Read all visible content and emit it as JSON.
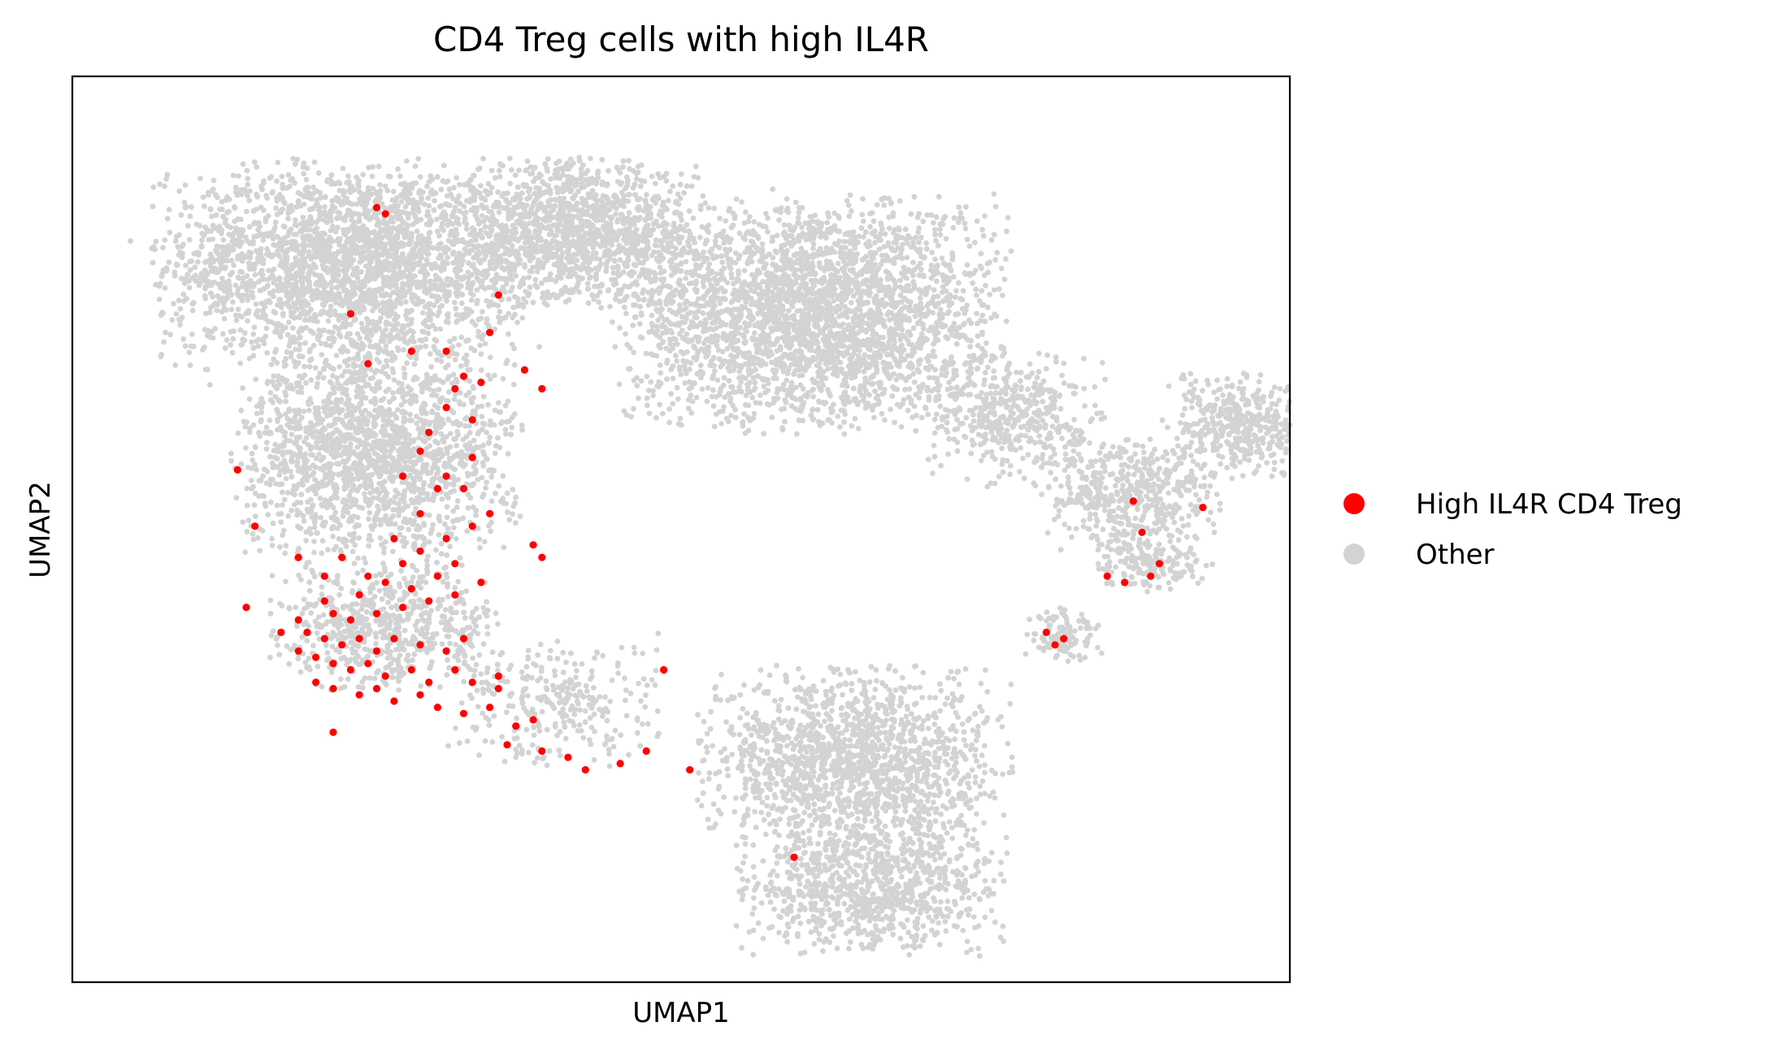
{
  "chart_data": {
    "type": "scatter",
    "title": "CD4 Treg cells with high IL4R",
    "xlabel": "UMAP1",
    "ylabel": "UMAP2",
    "xticks": [],
    "yticks": [],
    "grid": false,
    "legend_position": "right",
    "series": [
      {
        "name": "High IL4R CD4 Treg",
        "color": "#ff0000",
        "points": [
          [
            3.5,
            8.9
          ],
          [
            3.6,
            8.8
          ],
          [
            4.9,
            7.5
          ],
          [
            3.2,
            7.2
          ],
          [
            4.3,
            6.6
          ],
          [
            4.8,
            6.9
          ],
          [
            3.9,
            6.6
          ],
          [
            3.4,
            6.4
          ],
          [
            5.2,
            6.3
          ],
          [
            4.5,
            6.2
          ],
          [
            4.7,
            6.1
          ],
          [
            4.4,
            6.0
          ],
          [
            5.4,
            6.0
          ],
          [
            4.3,
            5.7
          ],
          [
            4.6,
            5.5
          ],
          [
            4.1,
            5.3
          ],
          [
            4.0,
            5.0
          ],
          [
            4.6,
            4.9
          ],
          [
            4.3,
            4.6
          ],
          [
            4.5,
            4.4
          ],
          [
            4.8,
            4.0
          ],
          [
            5.3,
            3.5
          ],
          [
            3.8,
            4.6
          ],
          [
            4.2,
            4.4
          ],
          [
            4.0,
            4.0
          ],
          [
            4.6,
            3.8
          ],
          [
            4.3,
            3.6
          ],
          [
            5.4,
            3.3
          ],
          [
            1.9,
            4.7
          ],
          [
            2.1,
            3.8
          ],
          [
            2.6,
            3.3
          ],
          [
            2.9,
            3.0
          ],
          [
            3.1,
            3.3
          ],
          [
            3.4,
            3.0
          ],
          [
            3.6,
            2.9
          ],
          [
            3.3,
            2.7
          ],
          [
            3.9,
            2.8
          ],
          [
            4.2,
            3.0
          ],
          [
            4.7,
            2.9
          ],
          [
            2.9,
            2.6
          ],
          [
            3.0,
            2.4
          ],
          [
            3.2,
            2.3
          ],
          [
            3.5,
            2.4
          ],
          [
            3.8,
            2.5
          ],
          [
            4.1,
            2.6
          ],
          [
            4.4,
            2.7
          ],
          [
            2.6,
            2.3
          ],
          [
            2.7,
            2.1
          ],
          [
            2.9,
            2.0
          ],
          [
            3.1,
            1.9
          ],
          [
            3.3,
            2.0
          ],
          [
            3.5,
            1.8
          ],
          [
            3.7,
            2.0
          ],
          [
            4.0,
            1.9
          ],
          [
            4.3,
            1.8
          ],
          [
            4.5,
            2.0
          ],
          [
            2.4,
            2.1
          ],
          [
            2.6,
            1.8
          ],
          [
            2.8,
            1.7
          ],
          [
            3.0,
            1.6
          ],
          [
            3.2,
            1.5
          ],
          [
            3.4,
            1.6
          ],
          [
            3.6,
            1.4
          ],
          [
            3.9,
            1.5
          ],
          [
            4.1,
            1.3
          ],
          [
            4.4,
            1.5
          ],
          [
            4.6,
            1.3
          ],
          [
            4.9,
            1.2
          ],
          [
            2.8,
            1.3
          ],
          [
            3.0,
            1.2
          ],
          [
            3.3,
            1.1
          ],
          [
            3.5,
            1.2
          ],
          [
            3.7,
            1.0
          ],
          [
            4.0,
            1.1
          ],
          [
            4.2,
            0.9
          ],
          [
            4.5,
            0.8
          ],
          [
            4.8,
            0.9
          ],
          [
            5.1,
            0.6
          ],
          [
            5.3,
            0.7
          ],
          [
            5.0,
            0.3
          ],
          [
            5.4,
            0.2
          ],
          [
            5.7,
            0.1
          ],
          [
            5.9,
            -0.1
          ],
          [
            6.3,
            0.0
          ],
          [
            6.8,
            1.5
          ],
          [
            6.6,
            0.2
          ],
          [
            7.1,
            -0.1
          ],
          [
            2.0,
            2.5
          ],
          [
            3.7,
            3.6
          ],
          [
            4.4,
            3.2
          ],
          [
            3.0,
            0.5
          ],
          [
            8.3,
            -1.5
          ],
          [
            12.3,
            3.7
          ],
          [
            12.5,
            3.2
          ],
          [
            11.9,
            3.0
          ],
          [
            12.1,
            2.9
          ],
          [
            12.4,
            3.0
          ],
          [
            12.2,
            4.2
          ],
          [
            13.0,
            4.1
          ],
          [
            11.2,
            2.1
          ],
          [
            11.4,
            2.0
          ],
          [
            11.3,
            1.9
          ],
          [
            4.9,
            1.4
          ],
          [
            3.8,
            3.2
          ],
          [
            4.0,
            3.4
          ]
        ]
      },
      {
        "name": "Other",
        "color": "#d3d3d3",
        "points": []
      }
    ],
    "background_clusters": [
      {
        "cx": 3.2,
        "cy": 8.0,
        "sx": 1.9,
        "sy": 1.4,
        "n": 2600
      },
      {
        "cx": 5.8,
        "cy": 8.5,
        "sx": 1.2,
        "sy": 1.0,
        "n": 1300
      },
      {
        "cx": 8.5,
        "cy": 7.2,
        "sx": 1.9,
        "sy": 1.6,
        "n": 3000
      },
      {
        "cx": 3.5,
        "cy": 5.0,
        "sx": 1.4,
        "sy": 1.5,
        "n": 1800
      },
      {
        "cx": 3.6,
        "cy": 2.2,
        "sx": 1.1,
        "sy": 0.9,
        "n": 650
      },
      {
        "cx": 5.6,
        "cy": 1.0,
        "sx": 1.1,
        "sy": 0.9,
        "n": 300
      },
      {
        "cx": 9.0,
        "cy": 0.0,
        "sx": 1.5,
        "sy": 1.3,
        "n": 1600
      },
      {
        "cx": 9.2,
        "cy": -2.0,
        "sx": 1.3,
        "sy": 0.9,
        "n": 900
      },
      {
        "cx": 10.8,
        "cy": 5.5,
        "sx": 0.9,
        "sy": 0.9,
        "n": 450
      },
      {
        "cx": 12.2,
        "cy": 4.3,
        "sx": 0.9,
        "sy": 0.8,
        "n": 500
      },
      {
        "cx": 13.5,
        "cy": 5.4,
        "sx": 0.8,
        "sy": 0.7,
        "n": 450
      },
      {
        "cx": 12.4,
        "cy": 3.2,
        "sx": 0.6,
        "sy": 0.4,
        "n": 160
      },
      {
        "cx": 11.4,
        "cy": 2.1,
        "sx": 0.4,
        "sy": 0.4,
        "n": 110
      }
    ],
    "xlim": [
      0,
      14
    ],
    "ylim": [
      -3.5,
      11
    ]
  }
}
